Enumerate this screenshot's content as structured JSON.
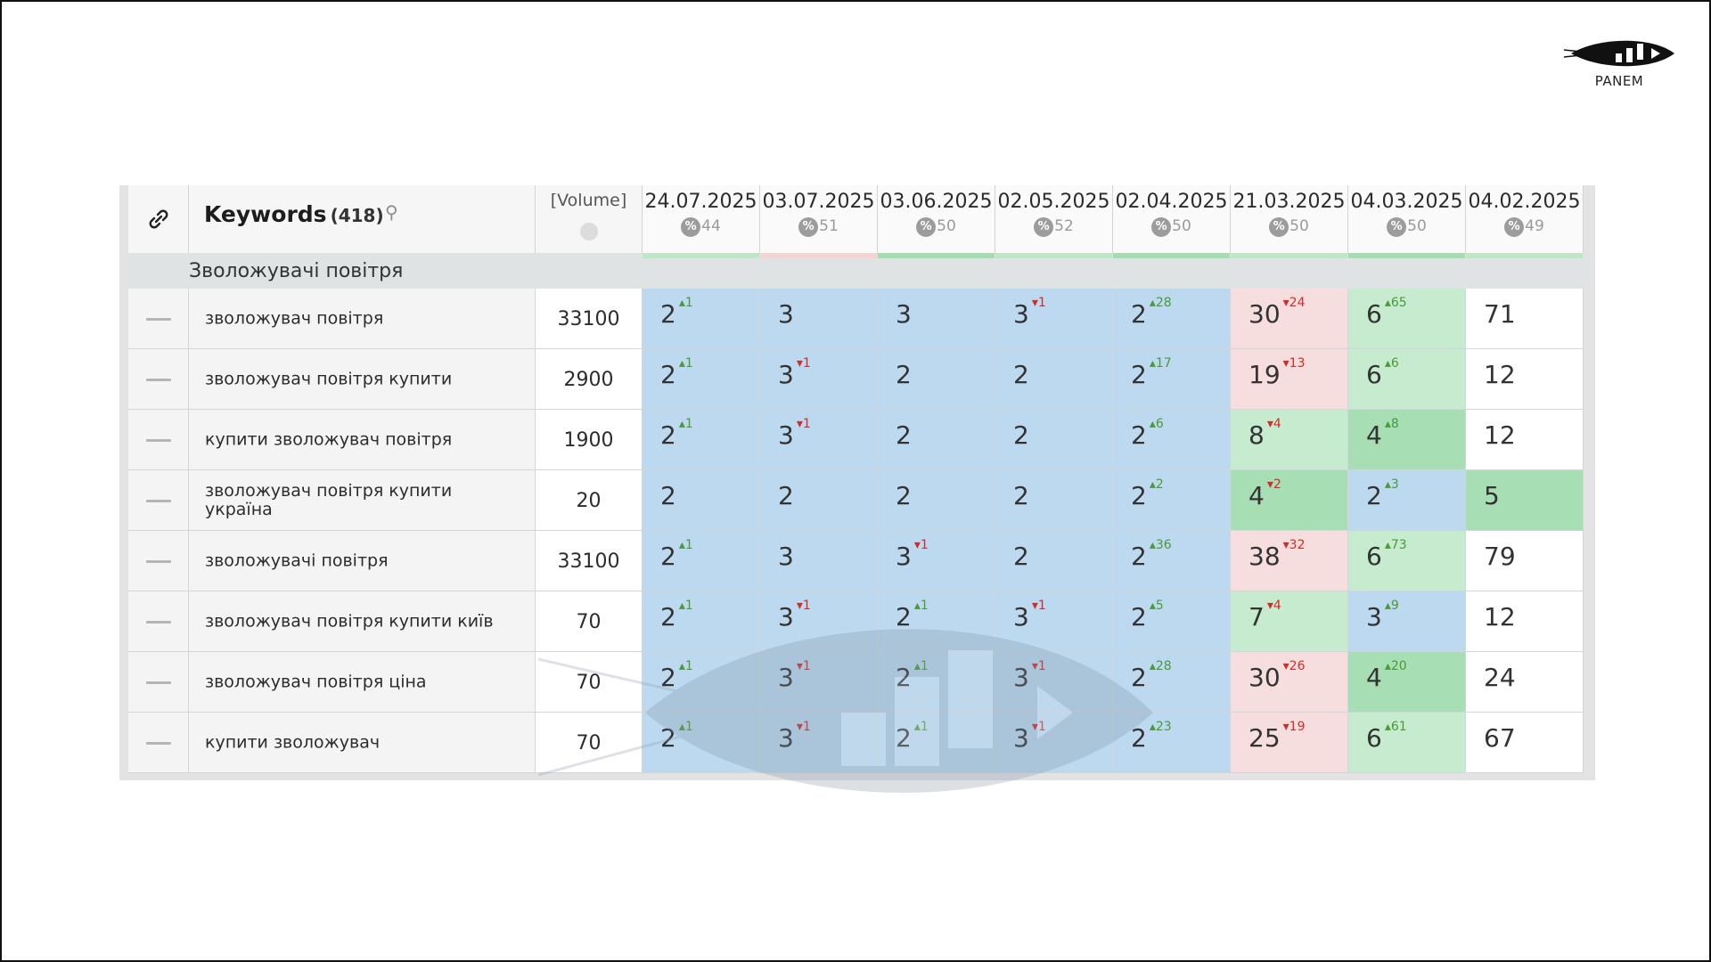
{
  "brand": {
    "name": "PANEM"
  },
  "header": {
    "keywords_label": "Keywords",
    "keywords_count": "(418)",
    "volume_label": "[Volume]"
  },
  "dates": [
    {
      "label": "24.07.2025",
      "pct": "44",
      "strip": "#bfe6c6"
    },
    {
      "label": "03.07.2025",
      "pct": "51",
      "strip": "#f6d4d4"
    },
    {
      "label": "03.06.2025",
      "pct": "50",
      "strip": "#a5dcb2"
    },
    {
      "label": "02.05.2025",
      "pct": "52",
      "strip": "#bfe6c6"
    },
    {
      "label": "02.04.2025",
      "pct": "50",
      "strip": "#a5dcb2"
    },
    {
      "label": "21.03.2025",
      "pct": "50",
      "strip": "#bfe6c6"
    },
    {
      "label": "04.03.2025",
      "pct": "50",
      "strip": "#a5dcb2"
    },
    {
      "label": "04.02.2025",
      "pct": "49",
      "strip": "#bfe6c6"
    }
  ],
  "group": {
    "label": "Зволожувачі повітря"
  },
  "rows": [
    {
      "keyword": "зволожувач повітря",
      "volume": "33100",
      "cells": [
        {
          "v": "2",
          "d": "1",
          "dir": "up",
          "bg": "blue"
        },
        {
          "v": "3",
          "d": "",
          "dir": "",
          "bg": "blue"
        },
        {
          "v": "3",
          "d": "",
          "dir": "",
          "bg": "blue"
        },
        {
          "v": "3",
          "d": "1",
          "dir": "down",
          "bg": "blue"
        },
        {
          "v": "2",
          "d": "28",
          "dir": "up",
          "bg": "blue"
        },
        {
          "v": "30",
          "d": "24",
          "dir": "down",
          "bg": "pink"
        },
        {
          "v": "6",
          "d": "65",
          "dir": "up",
          "bg": "lgreen"
        },
        {
          "v": "71",
          "d": "",
          "dir": "",
          "bg": "white"
        }
      ]
    },
    {
      "keyword": "зволожувач повітря купити",
      "volume": "2900",
      "cells": [
        {
          "v": "2",
          "d": "1",
          "dir": "up",
          "bg": "blue"
        },
        {
          "v": "3",
          "d": "1",
          "dir": "down",
          "bg": "blue"
        },
        {
          "v": "2",
          "d": "",
          "dir": "",
          "bg": "blue"
        },
        {
          "v": "2",
          "d": "",
          "dir": "",
          "bg": "blue"
        },
        {
          "v": "2",
          "d": "17",
          "dir": "up",
          "bg": "blue"
        },
        {
          "v": "19",
          "d": "13",
          "dir": "down",
          "bg": "pink"
        },
        {
          "v": "6",
          "d": "6",
          "dir": "up",
          "bg": "lgreen"
        },
        {
          "v": "12",
          "d": "",
          "dir": "",
          "bg": "white"
        }
      ]
    },
    {
      "keyword": "купити зволожувач повітря",
      "volume": "1900",
      "cells": [
        {
          "v": "2",
          "d": "1",
          "dir": "up",
          "bg": "blue"
        },
        {
          "v": "3",
          "d": "1",
          "dir": "down",
          "bg": "blue"
        },
        {
          "v": "2",
          "d": "",
          "dir": "",
          "bg": "blue"
        },
        {
          "v": "2",
          "d": "",
          "dir": "",
          "bg": "blue"
        },
        {
          "v": "2",
          "d": "6",
          "dir": "up",
          "bg": "blue"
        },
        {
          "v": "8",
          "d": "4",
          "dir": "down",
          "bg": "lgreen"
        },
        {
          "v": "4",
          "d": "8",
          "dir": "up",
          "bg": "green"
        },
        {
          "v": "12",
          "d": "",
          "dir": "",
          "bg": "white"
        }
      ]
    },
    {
      "keyword": "зволожувач повітря купити україна",
      "volume": "20",
      "cells": [
        {
          "v": "2",
          "d": "",
          "dir": "",
          "bg": "blue"
        },
        {
          "v": "2",
          "d": "",
          "dir": "",
          "bg": "blue"
        },
        {
          "v": "2",
          "d": "",
          "dir": "",
          "bg": "blue"
        },
        {
          "v": "2",
          "d": "",
          "dir": "",
          "bg": "blue"
        },
        {
          "v": "2",
          "d": "2",
          "dir": "up",
          "bg": "blue"
        },
        {
          "v": "4",
          "d": "2",
          "dir": "down",
          "bg": "green"
        },
        {
          "v": "2",
          "d": "3",
          "dir": "up",
          "bg": "blue"
        },
        {
          "v": "5",
          "d": "",
          "dir": "",
          "bg": "green"
        }
      ]
    },
    {
      "keyword": "зволожувачі повітря",
      "volume": "33100",
      "cells": [
        {
          "v": "2",
          "d": "1",
          "dir": "up",
          "bg": "blue"
        },
        {
          "v": "3",
          "d": "",
          "dir": "",
          "bg": "blue"
        },
        {
          "v": "3",
          "d": "1",
          "dir": "down",
          "bg": "blue"
        },
        {
          "v": "2",
          "d": "",
          "dir": "",
          "bg": "blue"
        },
        {
          "v": "2",
          "d": "36",
          "dir": "up",
          "bg": "blue"
        },
        {
          "v": "38",
          "d": "32",
          "dir": "down",
          "bg": "pink"
        },
        {
          "v": "6",
          "d": "73",
          "dir": "up",
          "bg": "lgreen"
        },
        {
          "v": "79",
          "d": "",
          "dir": "",
          "bg": "white"
        }
      ]
    },
    {
      "keyword": "зволожувач повітря купити київ",
      "volume": "70",
      "cells": [
        {
          "v": "2",
          "d": "1",
          "dir": "up",
          "bg": "blue"
        },
        {
          "v": "3",
          "d": "1",
          "dir": "down",
          "bg": "blue"
        },
        {
          "v": "2",
          "d": "1",
          "dir": "up",
          "bg": "blue"
        },
        {
          "v": "3",
          "d": "1",
          "dir": "down",
          "bg": "blue"
        },
        {
          "v": "2",
          "d": "5",
          "dir": "up",
          "bg": "blue"
        },
        {
          "v": "7",
          "d": "4",
          "dir": "down",
          "bg": "lgreen"
        },
        {
          "v": "3",
          "d": "9",
          "dir": "up",
          "bg": "blue"
        },
        {
          "v": "12",
          "d": "",
          "dir": "",
          "bg": "white"
        }
      ]
    },
    {
      "keyword": "зволожувач повітря ціна",
      "volume": "70",
      "cells": [
        {
          "v": "2",
          "d": "1",
          "dir": "up",
          "bg": "blue"
        },
        {
          "v": "3",
          "d": "1",
          "dir": "down",
          "bg": "blue"
        },
        {
          "v": "2",
          "d": "1",
          "dir": "up",
          "bg": "blue"
        },
        {
          "v": "3",
          "d": "1",
          "dir": "down",
          "bg": "blue"
        },
        {
          "v": "2",
          "d": "28",
          "dir": "up",
          "bg": "blue"
        },
        {
          "v": "30",
          "d": "26",
          "dir": "down",
          "bg": "pink"
        },
        {
          "v": "4",
          "d": "20",
          "dir": "up",
          "bg": "green"
        },
        {
          "v": "24",
          "d": "",
          "dir": "",
          "bg": "white"
        }
      ]
    },
    {
      "keyword": "купити зволожувач",
      "volume": "70",
      "cells": [
        {
          "v": "2",
          "d": "1",
          "dir": "up",
          "bg": "blue"
        },
        {
          "v": "3",
          "d": "1",
          "dir": "down",
          "bg": "blue"
        },
        {
          "v": "2",
          "d": "1",
          "dir": "up",
          "bg": "blue"
        },
        {
          "v": "3",
          "d": "1",
          "dir": "down",
          "bg": "blue"
        },
        {
          "v": "2",
          "d": "23",
          "dir": "up",
          "bg": "blue"
        },
        {
          "v": "25",
          "d": "19",
          "dir": "down",
          "bg": "pink"
        },
        {
          "v": "6",
          "d": "61",
          "dir": "up",
          "bg": "lgreen"
        },
        {
          "v": "67",
          "d": "",
          "dir": "",
          "bg": "white"
        }
      ]
    }
  ]
}
